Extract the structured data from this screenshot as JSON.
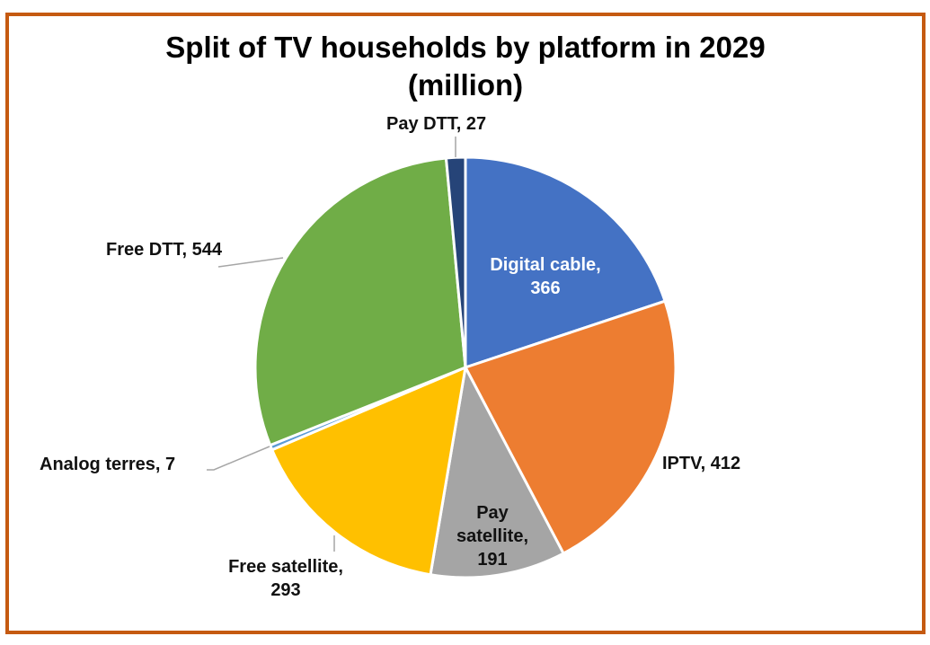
{
  "chart_data": {
    "type": "pie",
    "title": "Split of TV households by platform in 2029",
    "subtitle": "(million)",
    "start_angle_deg": 0,
    "direction": "clockwise",
    "slices": [
      {
        "label": "Digital cable",
        "value": 366,
        "color": "#4472C4",
        "data_label": [
          "Digital cable,",
          "366"
        ],
        "label_position": "inside",
        "label_color": "#FFFFFF"
      },
      {
        "label": "IPTV",
        "value": 412,
        "color": "#ED7D31",
        "data_label": [
          "IPTV, 412"
        ],
        "label_position": "outside",
        "label_color": "#111111"
      },
      {
        "label": "Pay satellite",
        "value": 191,
        "color": "#A5A5A5",
        "data_label": [
          "Pay",
          "satellite,",
          "191"
        ],
        "label_position": "inside",
        "label_color": "#111111"
      },
      {
        "label": "Free satellite",
        "value": 293,
        "color": "#FFC000",
        "data_label": [
          "Free satellite,",
          "293"
        ],
        "label_position": "outside",
        "label_color": "#111111"
      },
      {
        "label": "Analog terres",
        "value": 7,
        "color": "#5B9BD5",
        "data_label": [
          "Analog terres, 7"
        ],
        "label_position": "outside",
        "label_color": "#111111"
      },
      {
        "label": "Free DTT",
        "value": 544,
        "color": "#70AD47",
        "data_label": [
          "Free DTT, 544"
        ],
        "label_position": "outside",
        "label_color": "#111111"
      },
      {
        "label": "Pay DTT",
        "value": 27,
        "color": "#264478",
        "data_label": [
          "Pay DTT, 27"
        ],
        "label_position": "outside",
        "label_color": "#111111"
      }
    ],
    "legend": "none"
  },
  "frame_color": "#C55A11"
}
